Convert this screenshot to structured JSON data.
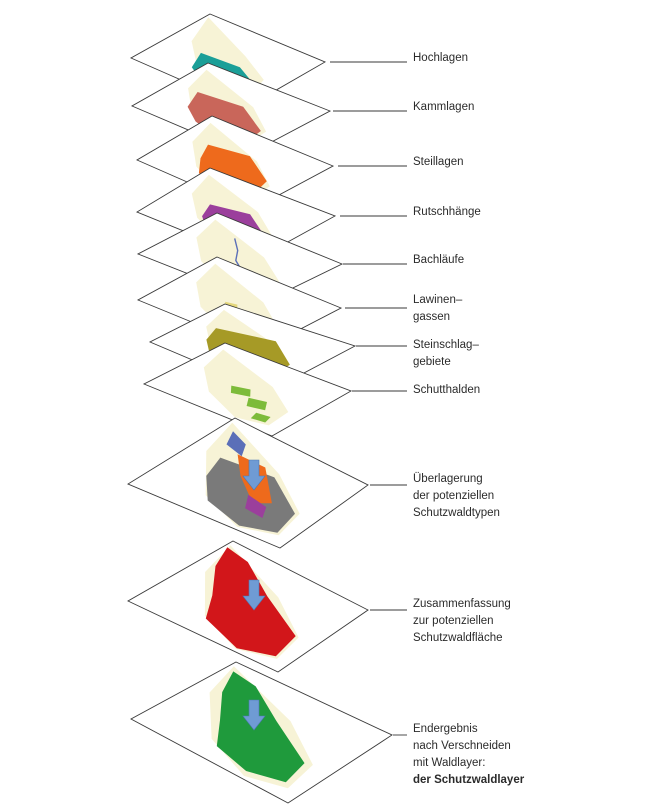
{
  "layers": [
    {
      "id": "hochlagen",
      "lines": [
        "Hochlagen"
      ]
    },
    {
      "id": "kammlagen",
      "lines": [
        "Kammlagen"
      ]
    },
    {
      "id": "steillagen",
      "lines": [
        "Steillagen"
      ]
    },
    {
      "id": "rutschhaenge",
      "lines": [
        "Rutschhänge"
      ]
    },
    {
      "id": "bachlaeufe",
      "lines": [
        "Bachläufe"
      ]
    },
    {
      "id": "lawinengassen",
      "lines": [
        "Lawinen–",
        "gassen"
      ]
    },
    {
      "id": "steinschlaggebiete",
      "lines": [
        "Steinschlag–",
        "gebiete"
      ]
    },
    {
      "id": "schutthalden",
      "lines": [
        "Schutthalden"
      ]
    },
    {
      "id": "ueberlagerung",
      "lines": [
        "Überlagerung",
        "der potenziellen",
        "Schutzwaldtypen"
      ]
    },
    {
      "id": "zusammenfassung",
      "lines": [
        "Zusammenfassung",
        "zur potenziellen",
        "Schutzwaldfläche"
      ]
    },
    {
      "id": "endergebnis",
      "lines": [
        "Endergebnis",
        "nach Verschneiden",
        "mit Waldlayer:",
        "der Schutzwaldlayer"
      ],
      "bold_last": true
    }
  ],
  "colors": {
    "base": "#f7f3d6",
    "hochlagen": "#1b9f98",
    "kammlagen": "#c9665a",
    "steillagen": "#ee6a1c",
    "rutschhaenge": "#9b3f9c",
    "bachlaeufe": "#5b6fb8",
    "lawinengassen": "#e4d77c",
    "steinschlaggebiete": "#a69a26",
    "schutthalden": "#7dbb3a",
    "zusammenfassung": "#d2161a",
    "endergebnis": "#1f9a3c",
    "arrow": "#6f9bd4"
  }
}
